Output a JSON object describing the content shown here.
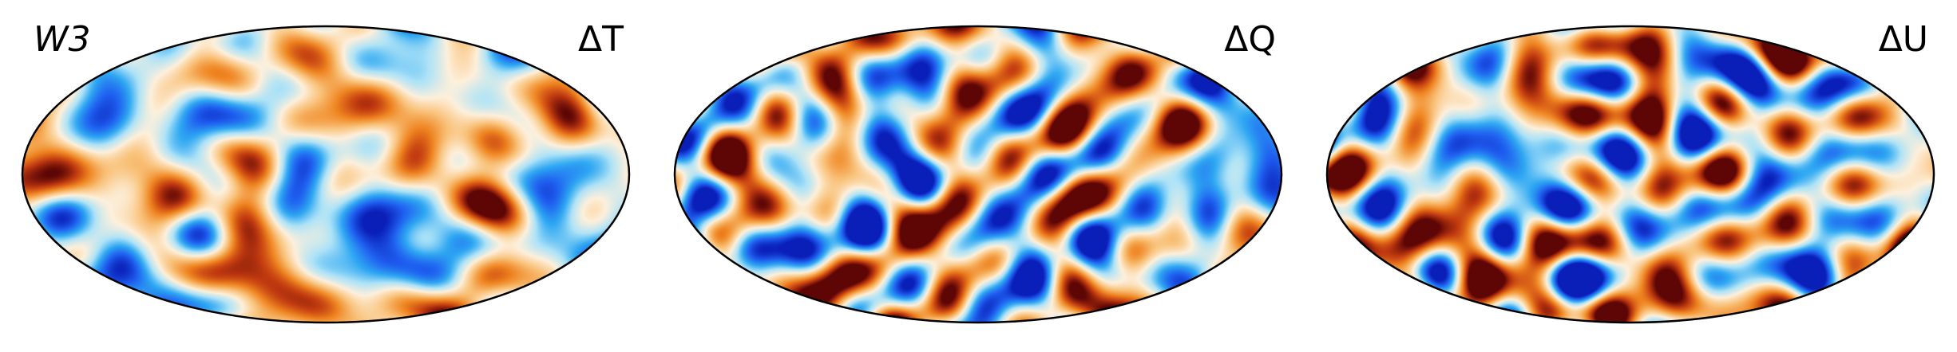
{
  "figure": {
    "map_left_label": "W3",
    "panels": [
      {
        "id": "dT",
        "label": "ΔT",
        "seed": 11,
        "amplitude": 0.85,
        "stripe": 0.25
      },
      {
        "id": "dQ",
        "label": "ΔQ",
        "seed": 47,
        "amplitude": 1.35,
        "stripe": 0.8
      },
      {
        "id": "dU",
        "label": "ΔU",
        "seed": 93,
        "amplitude": 1.25,
        "stripe": 0.7
      }
    ],
    "colormap": [
      "#0a1fb8",
      "#1f5ff0",
      "#2fa8f2",
      "#aee3f7",
      "#fdf0dc",
      "#f9c27a",
      "#ef8420",
      "#c23b10",
      "#5e0606"
    ],
    "projection": "mollweide",
    "outline_color": "#000000"
  }
}
